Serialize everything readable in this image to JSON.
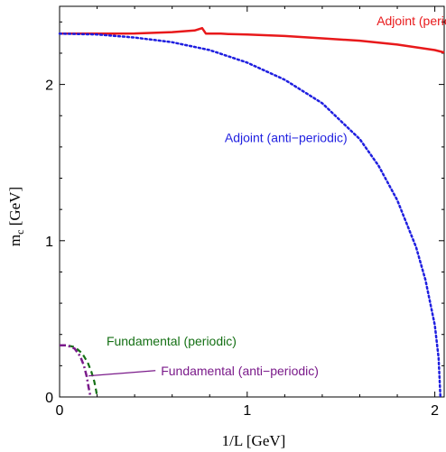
{
  "chart_data": {
    "type": "line",
    "xlabel": "1/L [GeV]",
    "ylabel_main": "m",
    "ylabel_sub": "c",
    "ylabel_unit": " [GeV]",
    "xlim": [
      0,
      2.05
    ],
    "ylim": [
      0,
      2.5
    ],
    "xticks": [
      0,
      1,
      2
    ],
    "xtick_labels": [
      "0",
      "1",
      "2"
    ],
    "yticks": [
      0,
      1,
      2
    ],
    "ytick_labels": [
      "0",
      "1",
      "2"
    ],
    "grid": false,
    "series": [
      {
        "name": "Adjoint (periodic)",
        "color": "#e8191b",
        "dash": "solid",
        "x": [
          0,
          0.2,
          0.4,
          0.6,
          0.72,
          0.76,
          0.78,
          0.86,
          0.9,
          1.0,
          1.2,
          1.4,
          1.6,
          1.8,
          2.0,
          2.05
        ],
        "y": [
          2.325,
          2.325,
          2.326,
          2.335,
          2.345,
          2.36,
          2.325,
          2.325,
          2.323,
          2.32,
          2.31,
          2.295,
          2.28,
          2.255,
          2.22,
          2.205
        ]
      },
      {
        "name": "Adjoint (anti−periodic)",
        "color": "#1f1fe0",
        "dash": "dotted",
        "x": [
          0,
          0.2,
          0.4,
          0.6,
          0.8,
          1.0,
          1.2,
          1.4,
          1.6,
          1.7,
          1.8,
          1.9,
          1.95,
          2.0,
          2.02,
          2.03
        ],
        "y": [
          2.325,
          2.32,
          2.3,
          2.27,
          2.22,
          2.14,
          2.03,
          1.88,
          1.65,
          1.48,
          1.26,
          0.96,
          0.75,
          0.46,
          0.25,
          0.0
        ]
      },
      {
        "name": "Fundamental (periodic)",
        "color": "#157015",
        "dash": "dashed",
        "x": [
          0,
          0.04,
          0.08,
          0.12,
          0.15,
          0.17,
          0.185,
          0.195,
          0.2
        ],
        "y": [
          0.33,
          0.33,
          0.32,
          0.28,
          0.22,
          0.16,
          0.1,
          0.04,
          0.0
        ]
      },
      {
        "name": "Fundamental (anti−periodic)",
        "color": "#7a1a8a",
        "dash": "dashdot",
        "x": [
          0,
          0.04,
          0.08,
          0.11,
          0.13,
          0.145,
          0.155,
          0.165
        ],
        "y": [
          0.33,
          0.33,
          0.31,
          0.26,
          0.2,
          0.13,
          0.06,
          0.0
        ]
      }
    ],
    "annotations": [
      {
        "text": "Adjoint (periodic)",
        "color": "#e8191b",
        "x": 1.69,
        "y": 2.38
      },
      {
        "text": "Adjoint (anti−periodic)",
        "color": "#1f1fe0",
        "x": 0.88,
        "y": 1.63
      },
      {
        "text": "Fundamental (periodic)",
        "color": "#157015",
        "x": 0.25,
        "y": 0.33
      },
      {
        "text": "Fundamental (anti−periodic)",
        "color": "#7a1a8a",
        "x": 0.54,
        "y": 0.14
      }
    ]
  }
}
